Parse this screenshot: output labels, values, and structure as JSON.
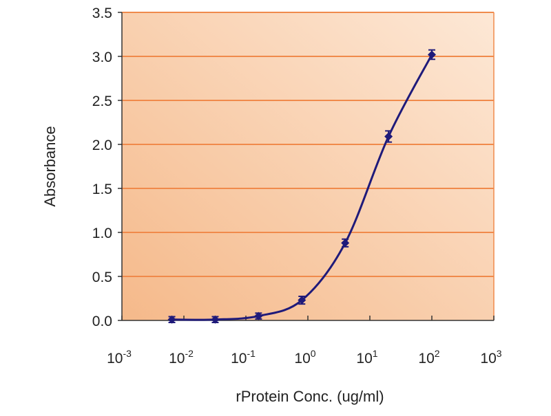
{
  "chart_data": {
    "type": "line",
    "title": "",
    "xlabel": "rProtein Conc. (ug/ml)",
    "ylabel": "Absorbance",
    "xscale": "log",
    "xlim": [
      0.001,
      1000
    ],
    "ylim": [
      0,
      3.5
    ],
    "x_ticks": [
      {
        "base": "10",
        "exp": "-3"
      },
      {
        "base": "10",
        "exp": "-2"
      },
      {
        "base": "10",
        "exp": "-1"
      },
      {
        "base": "10",
        "exp": "0"
      },
      {
        "base": "10",
        "exp": "1"
      },
      {
        "base": "10",
        "exp": "2"
      },
      {
        "base": "10",
        "exp": "3"
      }
    ],
    "y_ticks": [
      "0.0",
      "0.5",
      "1.0",
      "1.5",
      "2.0",
      "2.5",
      "3.0",
      "3.5"
    ],
    "grid": "horizontal",
    "series": [
      {
        "x": [
          0.0064,
          0.032,
          0.16,
          0.8,
          4,
          20,
          100
        ],
        "y": [
          0.01,
          0.01,
          0.05,
          0.23,
          0.88,
          2.09,
          3.02
        ],
        "error": [
          0.01,
          0.01,
          0.01,
          0.02,
          0.02,
          0.04,
          0.03
        ]
      }
    ],
    "colors": {
      "line": "#1f1a7a",
      "grid": "#f08a4b",
      "background_dark": "#f5b98a",
      "background_light": "#fde8d6",
      "axis": "#333333"
    }
  }
}
